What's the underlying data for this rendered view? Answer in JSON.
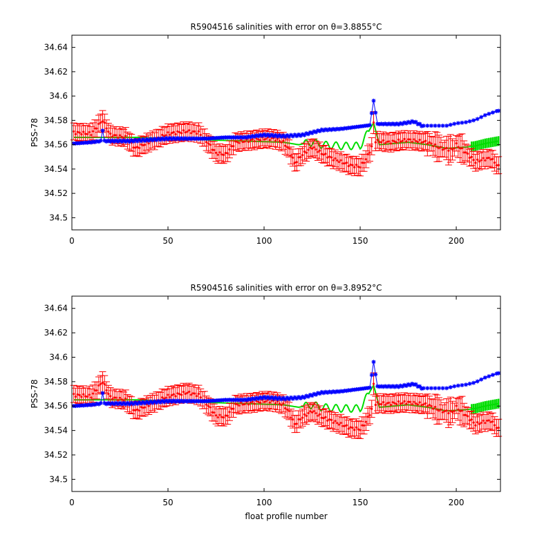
{
  "chart_data": [
    {
      "type": "scatter",
      "title": "R5904516 salinities with error on θ=3.8855°C",
      "xlabel": "",
      "ylabel": "PSS-78",
      "xlim": [
        0,
        223
      ],
      "ylim": [
        34.49,
        34.65
      ],
      "xticks": [
        0,
        50,
        100,
        150,
        200
      ],
      "yticks": [
        34.5,
        34.52,
        34.54,
        34.56,
        34.58,
        34.6,
        34.62,
        34.64
      ],
      "grid": false,
      "series": [
        {
          "color": "#ff0000",
          "marker": "errorbar",
          "anchors": [
            [
              1,
              34.57
            ],
            [
              10,
              34.569
            ],
            [
              16,
              34.58
            ],
            [
              20,
              34.568
            ],
            [
              28,
              34.566
            ],
            [
              33,
              34.557
            ],
            [
              40,
              34.562
            ],
            [
              50,
              34.569
            ],
            [
              60,
              34.571
            ],
            [
              66,
              34.57
            ],
            [
              70,
              34.563
            ],
            [
              75,
              34.553
            ],
            [
              80,
              34.552
            ],
            [
              85,
              34.562
            ],
            [
              90,
              34.563
            ],
            [
              95,
              34.564
            ],
            [
              100,
              34.565
            ],
            [
              105,
              34.565
            ],
            [
              110,
              34.562
            ],
            [
              113,
              34.556
            ],
            [
              116,
              34.545
            ],
            [
              120,
              34.552
            ],
            [
              125,
              34.558
            ],
            [
              130,
              34.553
            ],
            [
              135,
              34.549
            ],
            [
              140,
              34.546
            ],
            [
              145,
              34.543
            ],
            [
              150,
              34.542
            ],
            [
              153,
              34.548
            ],
            [
              156,
              34.558
            ],
            [
              157,
              34.578
            ],
            [
              158,
              34.563
            ],
            [
              165,
              34.562
            ],
            [
              175,
              34.564
            ],
            [
              185,
              34.562
            ],
            [
              192,
              34.557
            ],
            [
              198,
              34.556
            ],
            [
              200,
              34.56
            ],
            [
              206,
              34.552
            ],
            [
              210,
              34.546
            ],
            [
              214,
              34.548
            ],
            [
              218,
              34.549
            ],
            [
              222,
              34.542
            ]
          ],
          "err": 0.007
        },
        {
          "color": "#00dd00",
          "marker": "line",
          "anchors": [
            [
              1,
              34.566
            ],
            [
              20,
              34.566
            ],
            [
              35,
              34.566
            ],
            [
              50,
              34.565
            ],
            [
              70,
              34.564
            ],
            [
              90,
              34.563
            ],
            [
              110,
              34.562
            ],
            [
              118,
              34.56
            ],
            [
              125,
              34.562
            ],
            [
              130,
              34.56
            ],
            [
              140,
              34.559
            ],
            [
              150,
              34.559
            ],
            [
              157,
              34.578
            ],
            [
              160,
              34.56
            ],
            [
              175,
              34.562
            ],
            [
              185,
              34.56
            ],
            [
              195,
              34.557
            ],
            [
              205,
              34.558
            ],
            [
              210,
              34.559
            ],
            [
              215,
              34.561
            ],
            [
              222,
              34.563
            ]
          ],
          "wave": 0.003
        },
        {
          "color": "#0000ff",
          "marker": "star",
          "anchors": [
            [
              1,
              34.561
            ],
            [
              10,
              34.562
            ],
            [
              15,
              34.563
            ],
            [
              16,
              34.572
            ],
            [
              17,
              34.563
            ],
            [
              30,
              34.563
            ],
            [
              50,
              34.565
            ],
            [
              70,
              34.565
            ],
            [
              80,
              34.566
            ],
            [
              90,
              34.566
            ],
            [
              100,
              34.568
            ],
            [
              110,
              34.567
            ],
            [
              120,
              34.568
            ],
            [
              130,
              34.572
            ],
            [
              140,
              34.573
            ],
            [
              150,
              34.575
            ],
            [
              155,
              34.576
            ],
            [
              157,
              34.596
            ],
            [
              159,
              34.577
            ],
            [
              170,
              34.577
            ],
            [
              178,
              34.579
            ],
            [
              183,
              34.575
            ],
            [
              195,
              34.575
            ],
            [
              200,
              34.577
            ],
            [
              205,
              34.578
            ],
            [
              210,
              34.58
            ],
            [
              215,
              34.584
            ],
            [
              222,
              34.588
            ]
          ]
        }
      ]
    },
    {
      "type": "scatter",
      "title": "R5904516 salinities with error on θ=3.8952°C",
      "xlabel": "float profile number",
      "ylabel": "PSS-78",
      "xlim": [
        0,
        223
      ],
      "ylim": [
        34.49,
        34.65
      ],
      "xticks": [
        0,
        50,
        100,
        150,
        200
      ],
      "yticks": [
        34.5,
        34.52,
        34.54,
        34.56,
        34.58,
        34.6,
        34.62,
        34.64
      ],
      "grid": false,
      "series": [
        {
          "color": "#ff0000",
          "marker": "errorbar",
          "anchors": [
            [
              1,
              34.569
            ],
            [
              10,
              34.568
            ],
            [
              16,
              34.58
            ],
            [
              20,
              34.567
            ],
            [
              28,
              34.565
            ],
            [
              33,
              34.556
            ],
            [
              40,
              34.561
            ],
            [
              50,
              34.568
            ],
            [
              60,
              34.571
            ],
            [
              66,
              34.569
            ],
            [
              70,
              34.562
            ],
            [
              75,
              34.552
            ],
            [
              80,
              34.551
            ],
            [
              85,
              34.561
            ],
            [
              90,
              34.562
            ],
            [
              95,
              34.563
            ],
            [
              100,
              34.564
            ],
            [
              105,
              34.564
            ],
            [
              110,
              34.561
            ],
            [
              113,
              34.555
            ],
            [
              116,
              34.545
            ],
            [
              120,
              34.551
            ],
            [
              125,
              34.556
            ],
            [
              130,
              34.551
            ],
            [
              135,
              34.548
            ],
            [
              140,
              34.545
            ],
            [
              145,
              34.542
            ],
            [
              150,
              34.541
            ],
            [
              153,
              34.547
            ],
            [
              156,
              34.557
            ],
            [
              157,
              34.578
            ],
            [
              158,
              34.562
            ],
            [
              165,
              34.562
            ],
            [
              175,
              34.563
            ],
            [
              185,
              34.561
            ],
            [
              192,
              34.556
            ],
            [
              198,
              34.555
            ],
            [
              200,
              34.559
            ],
            [
              206,
              34.551
            ],
            [
              210,
              34.545
            ],
            [
              214,
              34.547
            ],
            [
              218,
              34.548
            ],
            [
              222,
              34.541
            ]
          ],
          "err": 0.007
        },
        {
          "color": "#00dd00",
          "marker": "line",
          "anchors": [
            [
              1,
              34.565
            ],
            [
              20,
              34.565
            ],
            [
              35,
              34.565
            ],
            [
              50,
              34.564
            ],
            [
              70,
              34.563
            ],
            [
              90,
              34.562
            ],
            [
              110,
              34.561
            ],
            [
              118,
              34.559
            ],
            [
              125,
              34.561
            ],
            [
              130,
              34.559
            ],
            [
              140,
              34.558
            ],
            [
              150,
              34.558
            ],
            [
              157,
              34.577
            ],
            [
              160,
              34.559
            ],
            [
              175,
              34.561
            ],
            [
              185,
              34.559
            ],
            [
              195,
              34.556
            ],
            [
              205,
              34.557
            ],
            [
              210,
              34.558
            ],
            [
              215,
              34.56
            ],
            [
              222,
              34.562
            ]
          ],
          "wave": 0.003
        },
        {
          "color": "#0000ff",
          "marker": "star",
          "anchors": [
            [
              1,
              34.56
            ],
            [
              10,
              34.561
            ],
            [
              15,
              34.562
            ],
            [
              16,
              34.571
            ],
            [
              17,
              34.562
            ],
            [
              30,
              34.562
            ],
            [
              50,
              34.564
            ],
            [
              70,
              34.564
            ],
            [
              80,
              34.565
            ],
            [
              90,
              34.565
            ],
            [
              100,
              34.567
            ],
            [
              110,
              34.566
            ],
            [
              120,
              34.567
            ],
            [
              130,
              34.571
            ],
            [
              140,
              34.572
            ],
            [
              150,
              34.574
            ],
            [
              155,
              34.575
            ],
            [
              157,
              34.596
            ],
            [
              159,
              34.576
            ],
            [
              170,
              34.576
            ],
            [
              178,
              34.578
            ],
            [
              183,
              34.574
            ],
            [
              195,
              34.574
            ],
            [
              200,
              34.576
            ],
            [
              205,
              34.577
            ],
            [
              210,
              34.579
            ],
            [
              215,
              34.583
            ],
            [
              222,
              34.587
            ]
          ]
        }
      ]
    }
  ]
}
